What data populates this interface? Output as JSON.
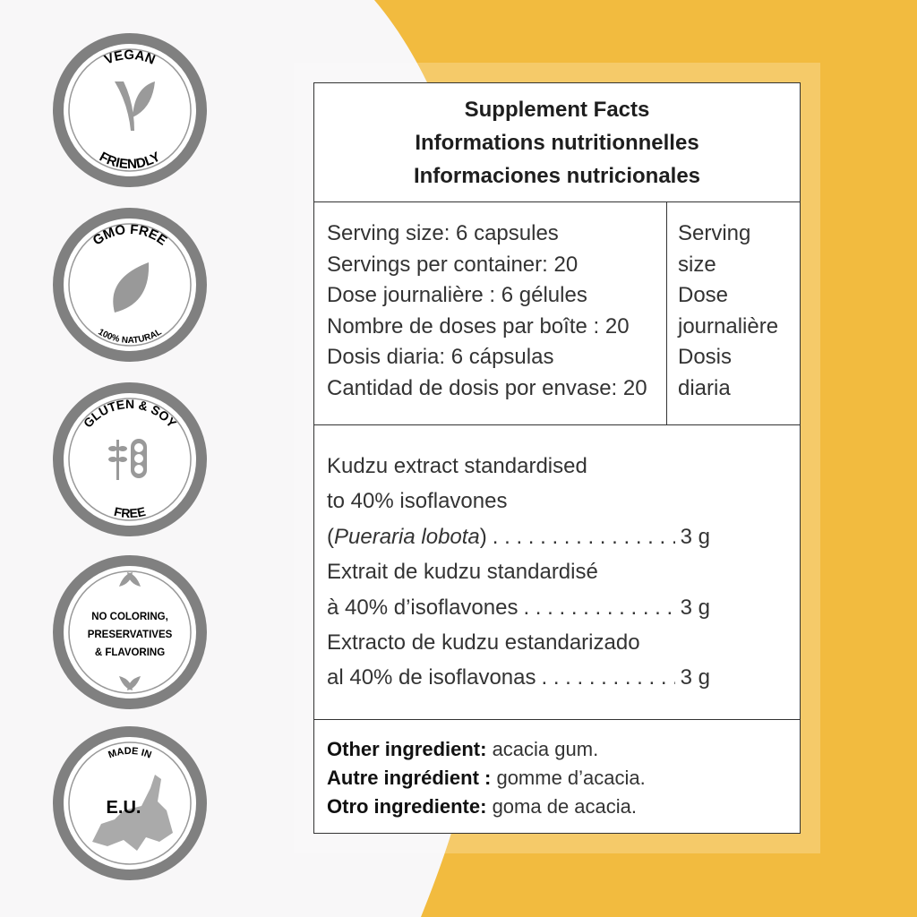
{
  "colors": {
    "accent": "#f2bb3f",
    "badge_gray": "#808080"
  },
  "badges": [
    {
      "top": "VEGAN",
      "bottom": "FRIENDLY",
      "icon": "v-leaf-icon"
    },
    {
      "top": "GMO FREE",
      "bottom": "100% NATURAL",
      "icon": "leaf-icon"
    },
    {
      "top": "GLUTEN & SOY",
      "bottom": "FREE",
      "icon": "wheat-soy-icon"
    },
    {
      "lines": [
        "NO COLORING,",
        "PRESERVATIVES",
        "& FLAVORING"
      ],
      "icon": "leaves-icon"
    },
    {
      "top": "MADE IN",
      "center": "E.U.",
      "icon": "europe-map-icon"
    }
  ],
  "header": [
    "Supplement Facts",
    "Informations nutritionnelles",
    "Informaciones nutricionales"
  ],
  "serving": {
    "left": [
      "Serving size: 6 capsules",
      "Servings per container: 20",
      "Dose journalière : 6 gélules",
      "Nombre de doses par boîte : 20",
      "Dosis diaria: 6 cápsulas",
      "Cantidad de dosis por envase: 20"
    ],
    "right": [
      "Serving",
      "size",
      "Dose",
      "journalière",
      "Dosis",
      "diaria"
    ]
  },
  "ingredients": {
    "en_1": "Kudzu extract standardised",
    "en_2": "to 40% isoflavones",
    "en_latin": "Pueraria lobota",
    "en_amount": "3 g",
    "fr_1": "Extrait de kudzu standardisé",
    "fr_2": "à 40% d’isoflavones",
    "fr_amount": "3 g",
    "es_1": "Extracto de kudzu estandarizado",
    "es_2": "al 40% de isoflavonas",
    "es_amount": "3 g"
  },
  "other": [
    {
      "label": "Other ingredient:",
      "value": " acacia gum."
    },
    {
      "label": "Autre ingrédient :",
      "value": " gomme d’acacia."
    },
    {
      "label": "Otro ingrediente:",
      "value": " goma de acacia."
    }
  ]
}
